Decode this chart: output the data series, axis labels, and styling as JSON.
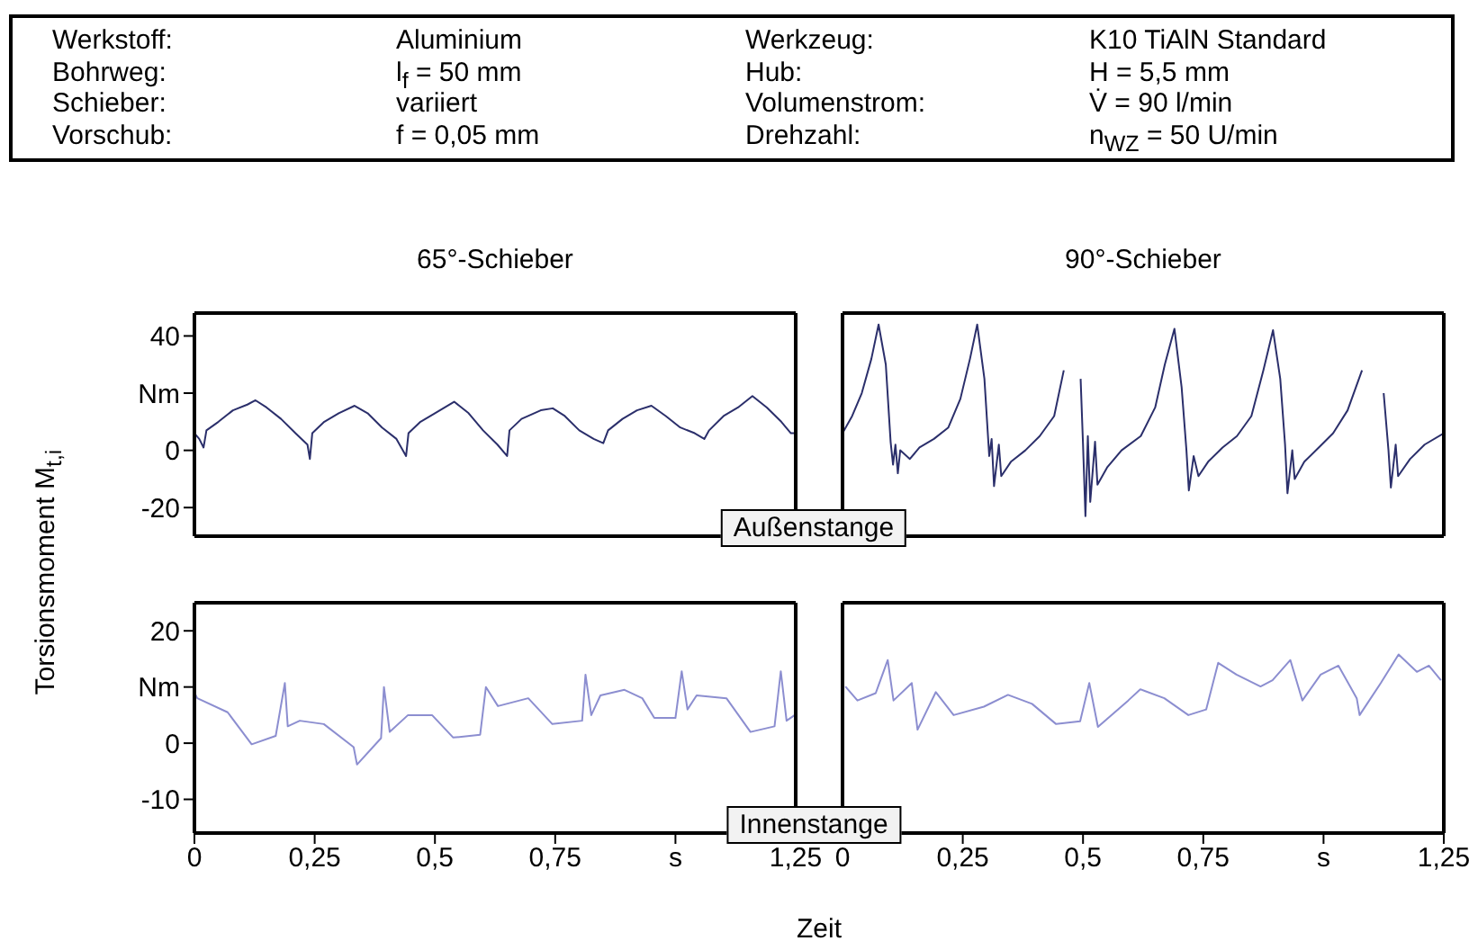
{
  "chart_data": [
    {
      "type": "other",
      "annotations": [
        "Werkstoff:",
        "Aluminium",
        "Werkzeug:",
        "K10 TiAlN Standard",
        "Bohrweg:",
        "l$_{f}$ = 50 mm",
        "Hub:",
        "H = 5,5 mm",
        "Schieber:",
        "variiert",
        "Volumenstrom:",
        "V̇ = 90 l/min",
        "Vorschub:",
        "f = 0,05 mm",
        "Drehzahl:",
        "n$_{WZ}$ = 50 U/min"
      ]
    },
    {
      "type": "line",
      "title": "65°-Schieber",
      "ylabel": "Torsionsmoment M$_{t,i}$",
      "annotations": [
        "Außenstange"
      ],
      "color": "#2b2f6b",
      "marker": "none",
      "tick_labels": "y",
      "xlim": [
        0,
        1.25
      ],
      "ylim": [
        -30,
        48
      ],
      "yticks": [
        40,
        {
          "value": 20,
          "label": "Nm"
        },
        0,
        -20
      ],
      "x": [
        0,
        0.01,
        0.019,
        0.025,
        0.05,
        0.08,
        0.11,
        0.127,
        0.15,
        0.18,
        0.21,
        0.235,
        0.24,
        0.245,
        0.27,
        0.3,
        0.333,
        0.36,
        0.39,
        0.42,
        0.44,
        0.445,
        0.47,
        0.5,
        0.54,
        0.57,
        0.6,
        0.63,
        0.65,
        0.655,
        0.68,
        0.72,
        0.745,
        0.77,
        0.8,
        0.83,
        0.85,
        0.86,
        0.89,
        0.92,
        0.95,
        0.98,
        1.01,
        1.04,
        1.06,
        1.07,
        1.1,
        1.13,
        1.16,
        1.19,
        1.22,
        1.24,
        1.25
      ],
      "values": [
        6,
        4,
        1,
        7,
        10,
        14,
        16,
        17.5,
        15,
        11,
        6,
        2,
        -3,
        6,
        10,
        13,
        15.6,
        13,
        8,
        4,
        -2,
        6,
        10,
        13,
        17,
        13,
        7,
        2,
        -2,
        7,
        11,
        14,
        14.7,
        12,
        7,
        4,
        2.5,
        7,
        11,
        14,
        15.6,
        12,
        8,
        6,
        4,
        7,
        12,
        15,
        19,
        15,
        10,
        6,
        6
      ]
    },
    {
      "type": "line",
      "title": "90°-Schieber",
      "color": "#2b2f6b",
      "marker": "none",
      "tick_labels": false,
      "xlim": [
        0,
        1.25
      ],
      "ylim": [
        -30,
        48
      ],
      "x": [
        0,
        0.02,
        0.04,
        0.06,
        0.075,
        0.09,
        0.1,
        0.105,
        0.11,
        0.115,
        0.12,
        0.14,
        0.16,
        0.19,
        0.22,
        0.245,
        0.265,
        0.28,
        0.295,
        0.305,
        0.31,
        0.315,
        0.325,
        0.33,
        0.35,
        0.38,
        0.41,
        0.44,
        0.46,
        0.48,
        0.495,
        0.5,
        0.505,
        0.51,
        0.515,
        0.525,
        0.53,
        0.55,
        0.58,
        0.62,
        0.65,
        0.67,
        0.69,
        0.705,
        0.715,
        0.72,
        0.73,
        0.74,
        0.76,
        0.79,
        0.82,
        0.85,
        0.875,
        0.895,
        0.91,
        0.92,
        0.925,
        0.935,
        0.94,
        0.96,
        0.99,
        1.02,
        1.05,
        1.08,
        1.11,
        1.125,
        1.135,
        1.14,
        1.15,
        1.155,
        1.18,
        1.21,
        1.25
      ],
      "values": [
        6,
        12,
        20,
        32,
        44,
        30,
        3,
        -5,
        2,
        -8,
        0,
        -3,
        1,
        4,
        8,
        18,
        32,
        44,
        25,
        -2,
        4,
        -12.5,
        2,
        -9,
        -4,
        0,
        5,
        12,
        28,
        null,
        25,
        2,
        -23,
        5,
        -18,
        3,
        -12,
        -6,
        0,
        5,
        15,
        30,
        42.5,
        22,
        0,
        -14,
        -2,
        -9,
        -4,
        1,
        5,
        12,
        28,
        42,
        25,
        2,
        -15,
        0,
        -10,
        -4,
        1,
        6,
        14,
        28,
        null,
        20,
        0,
        -13,
        2,
        -9,
        -3,
        2,
        6
      ]
    },
    {
      "type": "line",
      "xlabel": "Zeit",
      "annotations": [
        "Innenstange"
      ],
      "color": "#8c8ed0",
      "marker": "none",
      "xlim": [
        0,
        1.25
      ],
      "ylim": [
        -16,
        25
      ],
      "xticks": [
        0,
        {
          "value": 0.25,
          "label": "0,25"
        },
        {
          "value": 0.5,
          "label": "0,5"
        },
        {
          "value": 0.75,
          "label": "0,75"
        },
        {
          "value": 1,
          "label": "s"
        },
        {
          "value": 1.25,
          "label": "1,25"
        }
      ],
      "yticks": [
        20,
        {
          "value": 10,
          "label": "Nm"
        },
        0,
        -10
      ],
      "x": [
        0,
        0.006,
        0.069,
        0.119,
        0.169,
        0.188,
        0.194,
        0.219,
        0.269,
        0.331,
        0.338,
        0.388,
        0.394,
        0.406,
        0.444,
        0.494,
        0.538,
        0.594,
        0.606,
        0.631,
        0.694,
        0.744,
        0.806,
        0.813,
        0.825,
        0.844,
        0.894,
        0.931,
        0.956,
        1.0,
        1.013,
        1.025,
        1.044,
        1.106,
        1.156,
        1.206,
        1.219,
        1.231,
        1.248
      ],
      "values": [
        9,
        8,
        5.5,
        -0.2,
        1.3,
        10.7,
        3,
        4,
        3.4,
        -0.7,
        -3.8,
        0.9,
        10,
        2,
        5,
        5,
        1,
        1.5,
        10,
        6.6,
        8,
        3.4,
        4,
        12.2,
        5,
        8.5,
        9.5,
        8,
        4.5,
        4.5,
        12.8,
        6,
        8.5,
        8,
        2,
        3,
        12.8,
        4,
        5
      ]
    },
    {
      "type": "line",
      "color": "#8c8ed0",
      "marker": "none",
      "tick_labels": "x",
      "xlim": [
        0,
        1.25
      ],
      "ylim": [
        -16,
        25
      ],
      "xticks": [
        0,
        {
          "value": 0.25,
          "label": "0,25"
        },
        {
          "value": 0.5,
          "label": "0,5"
        },
        {
          "value": 0.75,
          "label": "0,75"
        },
        {
          "value": 1,
          "label": "s"
        },
        {
          "value": 1.25,
          "label": "1,25"
        }
      ],
      "x": [
        0.006,
        0.031,
        0.069,
        0.094,
        0.106,
        0.144,
        0.156,
        0.194,
        0.231,
        0.294,
        0.344,
        0.394,
        0.444,
        0.494,
        0.513,
        0.531,
        0.594,
        0.619,
        0.669,
        0.719,
        0.756,
        0.781,
        0.819,
        0.869,
        0.894,
        0.931,
        0.956,
        0.994,
        1.031,
        1.069,
        1.075,
        1.119,
        1.156,
        1.194,
        1.219,
        1.244
      ],
      "values": [
        10.1,
        7.6,
        8.9,
        14.8,
        7.6,
        10.7,
        2.4,
        9.1,
        5,
        6.5,
        8.6,
        7,
        3.4,
        3.9,
        10.7,
        2.9,
        7.6,
        9.6,
        8,
        5,
        6,
        14.3,
        12.2,
        10.1,
        11.2,
        14.8,
        7.6,
        12.2,
        13.8,
        8,
        5,
        10.7,
        15.8,
        12.7,
        13.8,
        11.2
      ]
    }
  ]
}
